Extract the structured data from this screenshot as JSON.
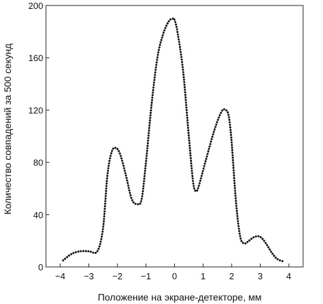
{
  "chart_data": {
    "type": "line",
    "title": "",
    "xlabel": "Положение на экране-детекторе, мм",
    "ylabel": "Количество совпадений за 500 секунд",
    "xlim": [
      -4.5,
      4.5
    ],
    "ylim": [
      0,
      200
    ],
    "xticks": [
      -4,
      -3,
      -2,
      -1,
      0,
      1,
      2,
      3,
      4
    ],
    "yticks": [
      0,
      40,
      80,
      120,
      160,
      200
    ],
    "grid": false,
    "legend": "none",
    "line_style": "dotted",
    "line_color": "#111111",
    "series": [
      {
        "x": [
          -3.9,
          -3.6,
          -3.3,
          -3.0,
          -2.7,
          -2.5,
          -2.35,
          -2.2,
          -2.05,
          -1.9,
          -1.7,
          -1.5,
          -1.3,
          -1.15,
          -1.0,
          -0.8,
          -0.6,
          -0.4,
          -0.2,
          -0.05,
          0.0,
          0.1,
          0.3,
          0.5,
          0.65,
          0.75,
          0.85,
          1.1,
          1.4,
          1.65,
          1.8,
          1.9,
          2.0,
          2.15,
          2.3,
          2.45,
          2.6,
          2.8,
          3.0,
          3.2,
          3.4,
          3.6,
          3.85
        ],
        "values": [
          5,
          10,
          12,
          12,
          12,
          30,
          70,
          88,
          91,
          86,
          70,
          52,
          48,
          52,
          80,
          125,
          160,
          178,
          188,
          190,
          189,
          180,
          150,
          100,
          65,
          58,
          62,
          82,
          105,
          119,
          120,
          115,
          95,
          50,
          23,
          18,
          20,
          23,
          23,
          18,
          11,
          6,
          4
        ]
      }
    ]
  }
}
